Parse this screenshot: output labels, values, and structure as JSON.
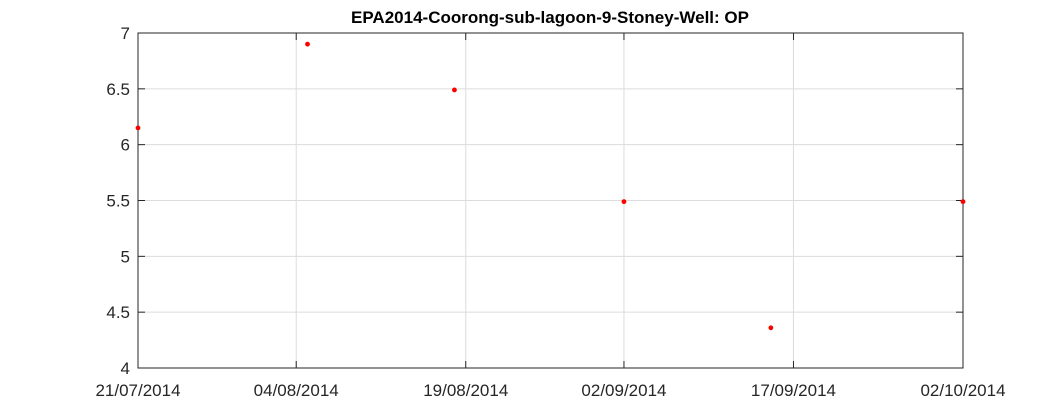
{
  "chart_data": {
    "type": "scatter",
    "title": "EPA2014-Coorong-sub-lagoon-9-Stoney-Well: OP",
    "xlabel": "",
    "ylabel": "",
    "x_tick_labels": [
      "21/07/2014",
      "04/08/2014",
      "19/08/2014",
      "02/09/2014",
      "17/09/2014",
      "02/10/2014"
    ],
    "x_ticks": [
      "2014-07-21",
      "2014-08-04",
      "2014-08-19",
      "2014-09-02",
      "2014-09-17",
      "2014-10-02"
    ],
    "xlim": [
      "2014-07-21",
      "2014-10-02"
    ],
    "y_ticks": [
      4,
      4.5,
      5,
      5.5,
      6,
      6.5,
      7
    ],
    "y_tick_labels": [
      "4",
      "4.5",
      "5",
      "5.5",
      "6",
      "6.5",
      "7"
    ],
    "ylim": [
      4,
      7
    ],
    "grid": true,
    "marker_color": "#ff0000",
    "series": [
      {
        "points": [
          {
            "x": "2014-07-21",
            "y": 6.15
          },
          {
            "x": "2014-08-05",
            "y": 6.9
          },
          {
            "x": "2014-08-18",
            "y": 6.49
          },
          {
            "x": "2014-09-02",
            "y": 5.49
          },
          {
            "x": "2014-09-15",
            "y": 4.36
          },
          {
            "x": "2014-10-02",
            "y": 5.49
          }
        ]
      }
    ]
  }
}
